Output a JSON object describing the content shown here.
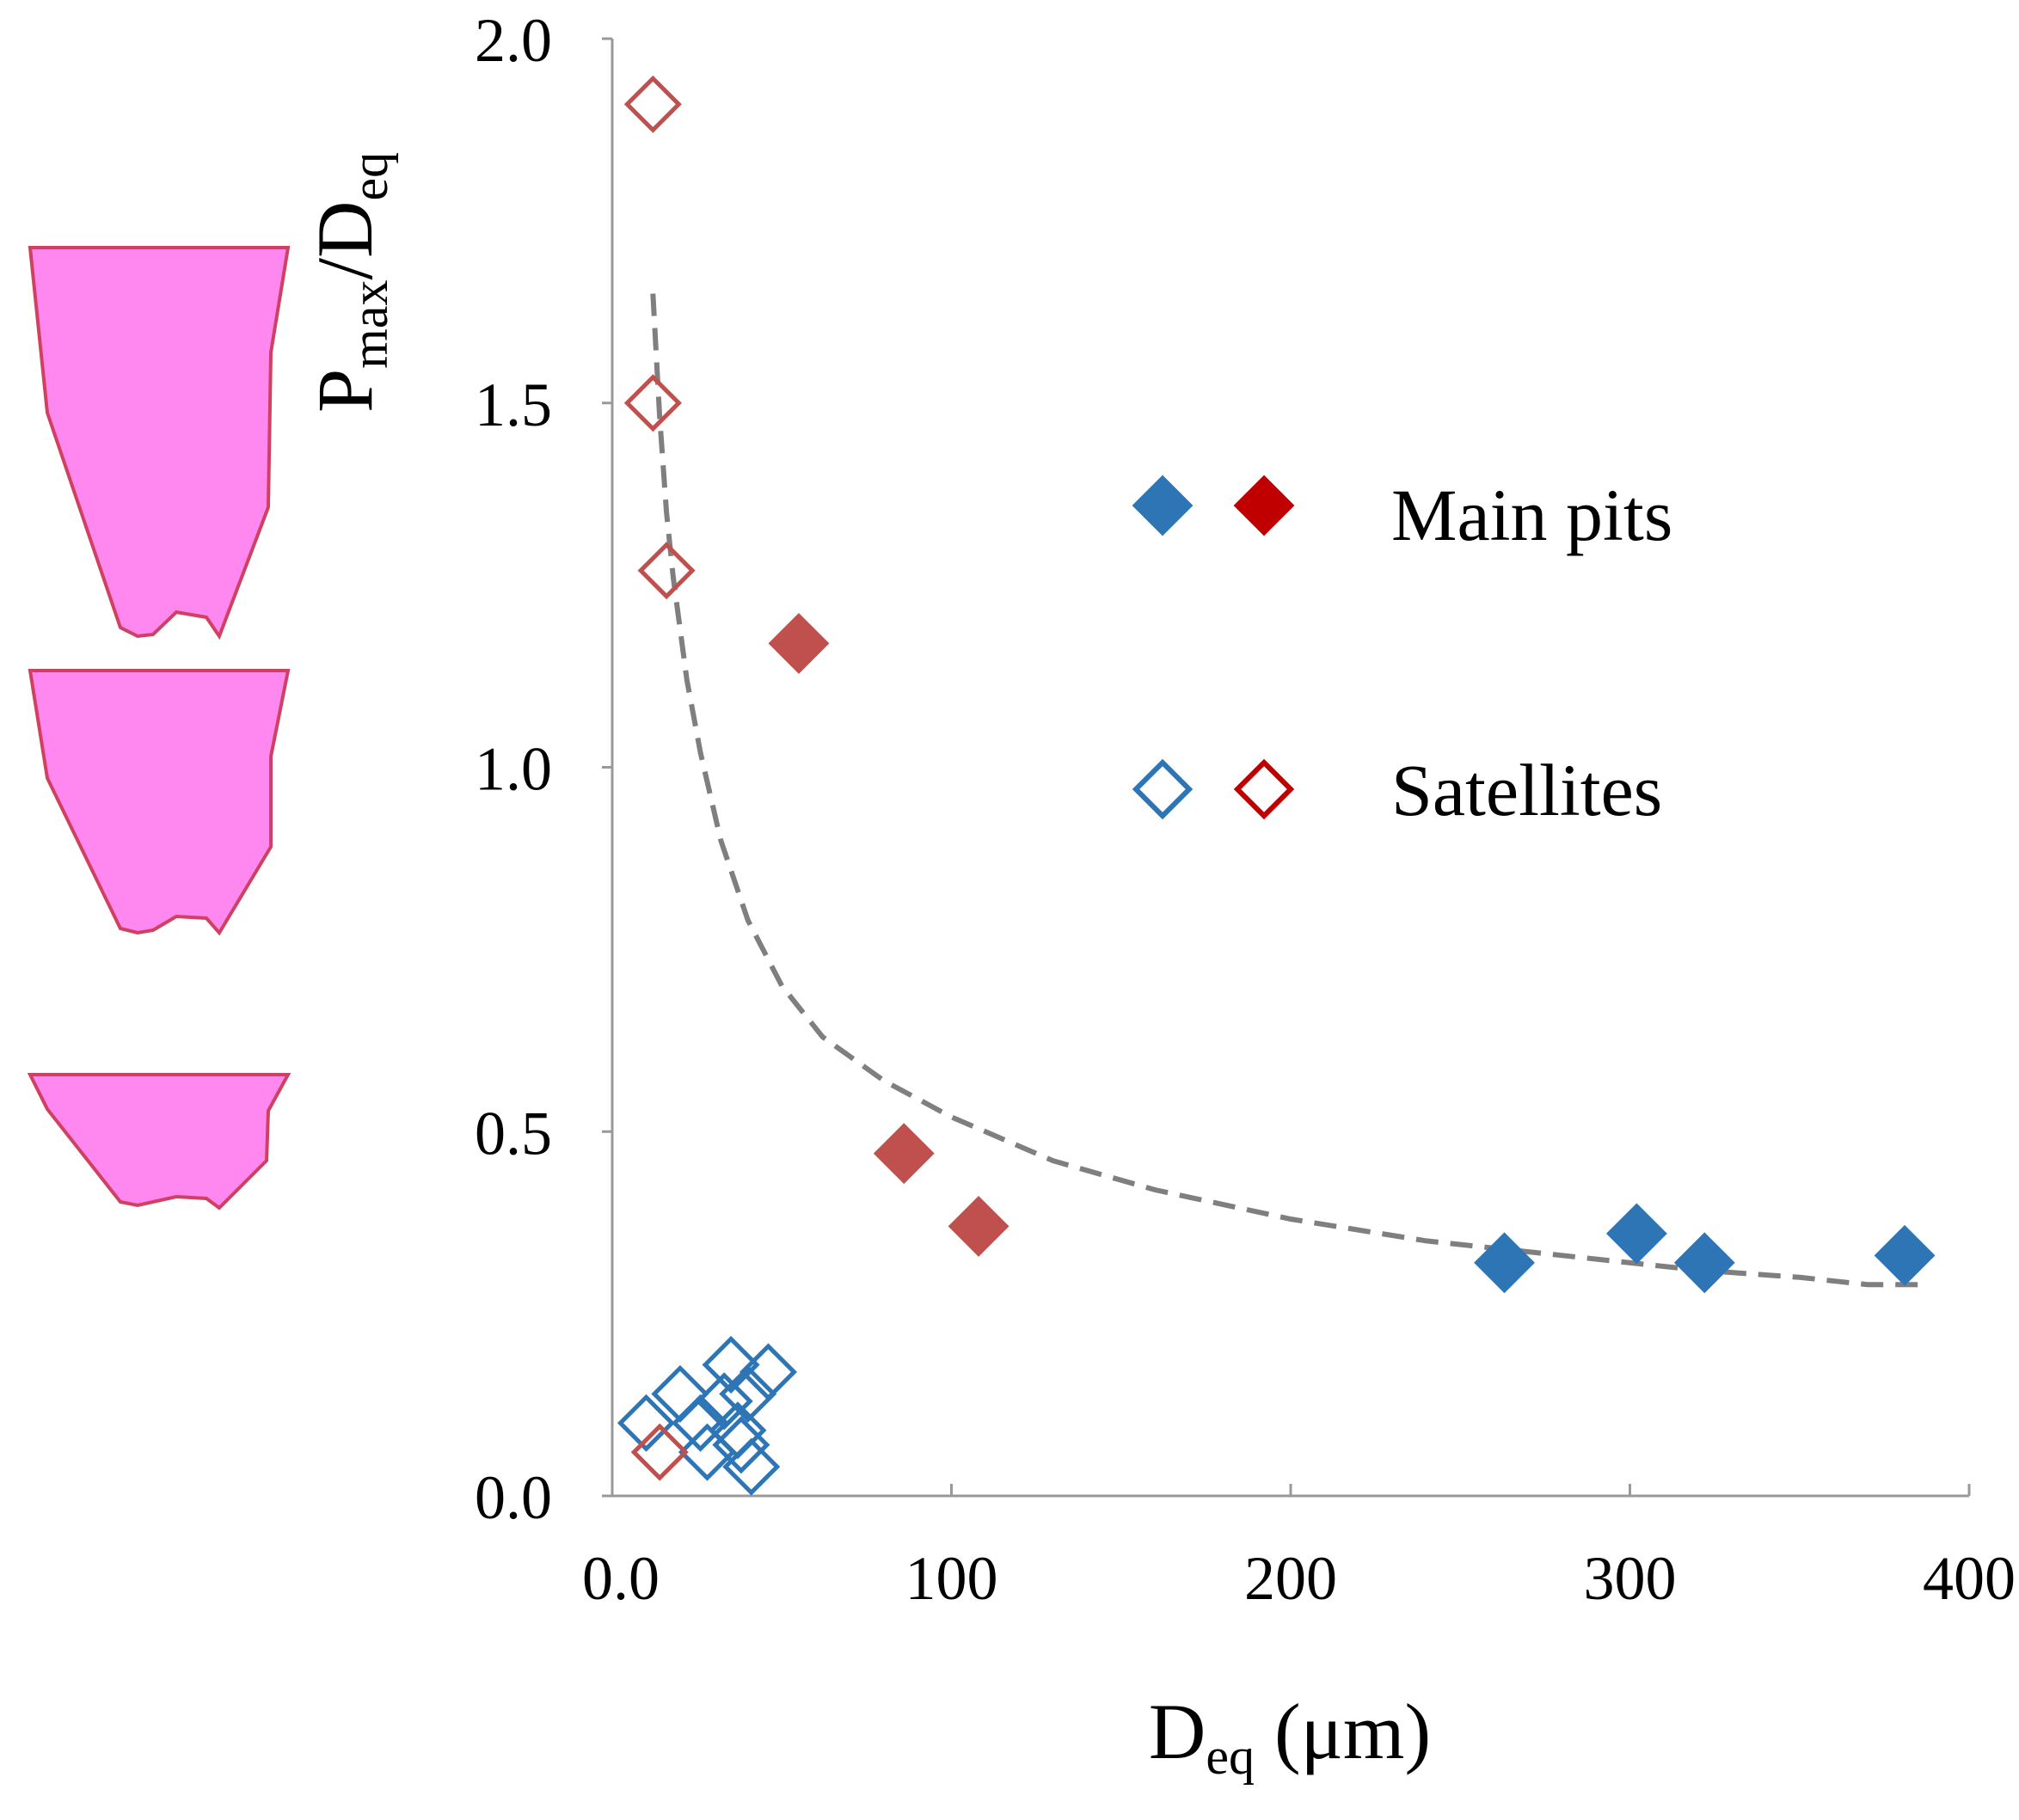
{
  "chart_data": {
    "type": "scatter",
    "title": "",
    "xlabel": {
      "main": "D",
      "sub": "eq",
      "rest": " (μm)"
    },
    "ylabel": {
      "main1": "P",
      "sub1": "max",
      "slash": "/",
      "main2": "D",
      "sub2": "eq"
    },
    "xlim": [
      0,
      400
    ],
    "ylim": [
      0,
      2
    ],
    "x_ticks": [
      0,
      100,
      200,
      300,
      400
    ],
    "x_tick_labels": [
      "0.0",
      "100",
      "200",
      "300",
      "400"
    ],
    "y_ticks": [
      0,
      0.5,
      1.0,
      1.5,
      2.0
    ],
    "y_tick_labels": [
      "0.0",
      "0.5",
      "1.0",
      "1.5",
      "2.0"
    ],
    "grid": false,
    "legend_position": "right",
    "legend": [
      {
        "label": "Main pits",
        "markers": [
          {
            "fill": true,
            "color": "#2E75B6"
          },
          {
            "fill": true,
            "color": "#C00000"
          }
        ]
      },
      {
        "label": "Satellites",
        "markers": [
          {
            "fill": false,
            "color": "#2E75B6"
          },
          {
            "fill": false,
            "color": "#C00000"
          }
        ]
      }
    ],
    "series": [
      {
        "name": "Main pits (blue)",
        "marker": "diamond-filled",
        "color": "#2E75B6",
        "x": [
          263,
          302,
          322,
          381
        ],
        "y": [
          0.32,
          0.36,
          0.32,
          0.33
        ]
      },
      {
        "name": "Main pits (red)",
        "marker": "diamond-filled",
        "color": "#C0504D",
        "x": [
          55,
          86,
          108
        ],
        "y": [
          1.17,
          0.47,
          0.37
        ]
      },
      {
        "name": "Satellites (blue)",
        "marker": "diamond-open",
        "color": "#2E75B6",
        "x": [
          10,
          20,
          26,
          28,
          33,
          35,
          37,
          38,
          40,
          41,
          46
        ],
        "y": [
          0.1,
          0.14,
          0.1,
          0.06,
          0.13,
          0.18,
          0.09,
          0.07,
          0.14,
          0.04,
          0.17
        ]
      },
      {
        "name": "Satellites (red)",
        "marker": "diamond-open",
        "color": "#C0504D",
        "x": [
          12,
          12,
          16,
          14
        ],
        "y": [
          1.91,
          1.5,
          1.27,
          0.06
        ]
      }
    ],
    "trendline": {
      "style": "dashed",
      "color": "#7F7F7F",
      "x": [
        12,
        14,
        16,
        18,
        22,
        26,
        32,
        40,
        50,
        62,
        80,
        100,
        130,
        160,
        200,
        240,
        280,
        320,
        350,
        370,
        385
      ],
      "y": [
        1.65,
        1.48,
        1.35,
        1.26,
        1.12,
        1.02,
        0.9,
        0.79,
        0.7,
        0.63,
        0.57,
        0.52,
        0.46,
        0.42,
        0.38,
        0.35,
        0.33,
        0.31,
        0.3,
        0.29,
        0.29
      ]
    }
  },
  "schematics": [
    {
      "name": "pit-shape-deep",
      "fill": "#FF88F0",
      "stroke": "#D04060"
    },
    {
      "name": "pit-shape-medium",
      "fill": "#FF88F0",
      "stroke": "#D04060"
    },
    {
      "name": "pit-shape-shallow",
      "fill": "#FF88F0",
      "stroke": "#D04060"
    }
  ]
}
